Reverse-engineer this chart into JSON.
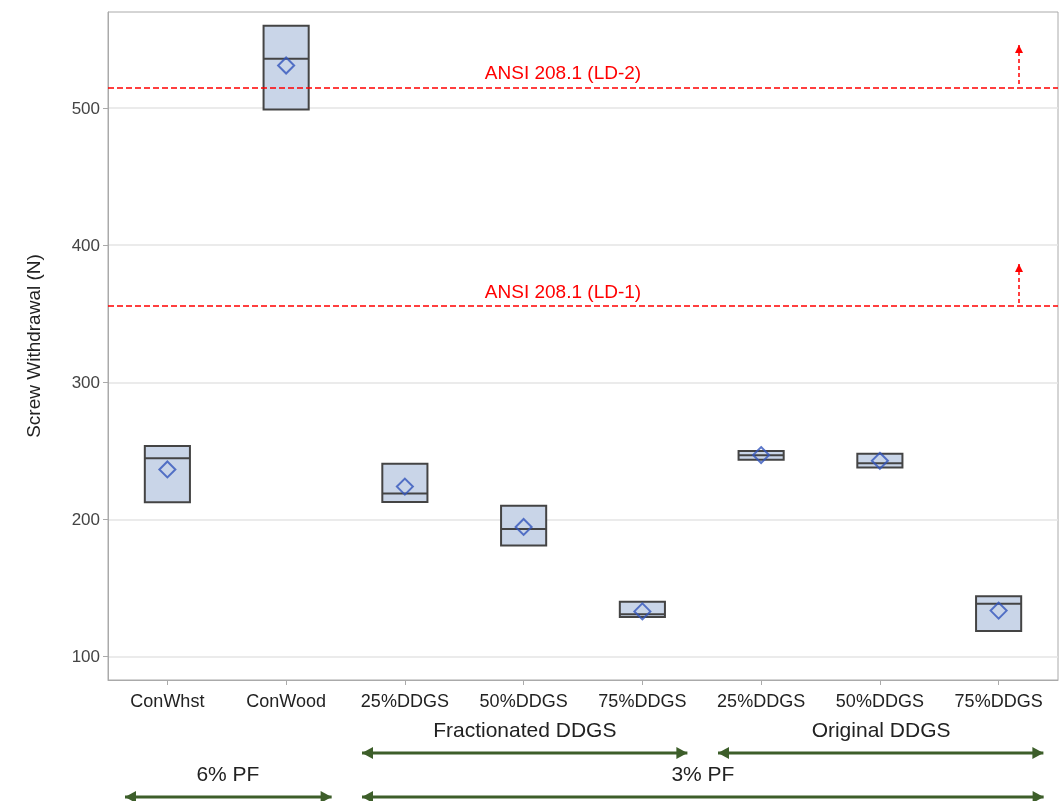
{
  "chart_data": {
    "type": "box",
    "ylabel": "Screw Withdrawal (N)",
    "categories": [
      "ConWhst",
      "ConWood",
      "25%DDGS",
      "50%DDGS",
      "75%DDGS",
      "25%DDGS",
      "50%DDGS",
      "75%DDGS"
    ],
    "boxes": [
      {
        "low": 212.6,
        "q1": 212.6,
        "median": 244.6,
        "q3": 253.6,
        "high": 253.6,
        "mean": 236.5
      },
      {
        "low": 499,
        "q1": 499,
        "median": 536,
        "q3": 560,
        "high": 560,
        "mean": 531
      },
      {
        "low": 212.8,
        "q1": 212.8,
        "median": 219,
        "q3": 240.6,
        "high": 240.6,
        "mean": 224
      },
      {
        "low": 181,
        "q1": 181,
        "median": 193,
        "q3": 210,
        "high": 210,
        "mean": 194.6
      },
      {
        "low": 129,
        "q1": 129,
        "median": 131,
        "q3": 140,
        "high": 140,
        "mean": 133
      },
      {
        "low": 243.5,
        "q1": 243.5,
        "median": 246.8,
        "q3": 250,
        "high": 250,
        "mean": 247
      },
      {
        "low": 238,
        "q1": 238,
        "median": 241,
        "q3": 248,
        "high": 248,
        "mean": 242.8
      },
      {
        "low": 118.8,
        "q1": 118.8,
        "median": 138.5,
        "q3": 144,
        "high": 144,
        "mean": 133.6
      }
    ],
    "color": "#c9d5e8",
    "marker": "diamond",
    "ylim": [
      83,
      570
    ],
    "yticks": [
      100,
      200,
      300,
      400,
      500
    ],
    "grid": "y",
    "ref_lines": [
      {
        "axis": "y",
        "value": 515,
        "label": "ANSI 208.1 (LD-2)",
        "color": "#ff0000",
        "line_style": "dashed"
      },
      {
        "axis": "y",
        "value": 356,
        "label": "ANSI 208.1 (LD-1)",
        "color": "#ff0000",
        "line_style": "dashed"
      }
    ],
    "annotations": [
      "Fractionated DDGS",
      "Original DDGS",
      "6% PF",
      "3% PF"
    ]
  }
}
